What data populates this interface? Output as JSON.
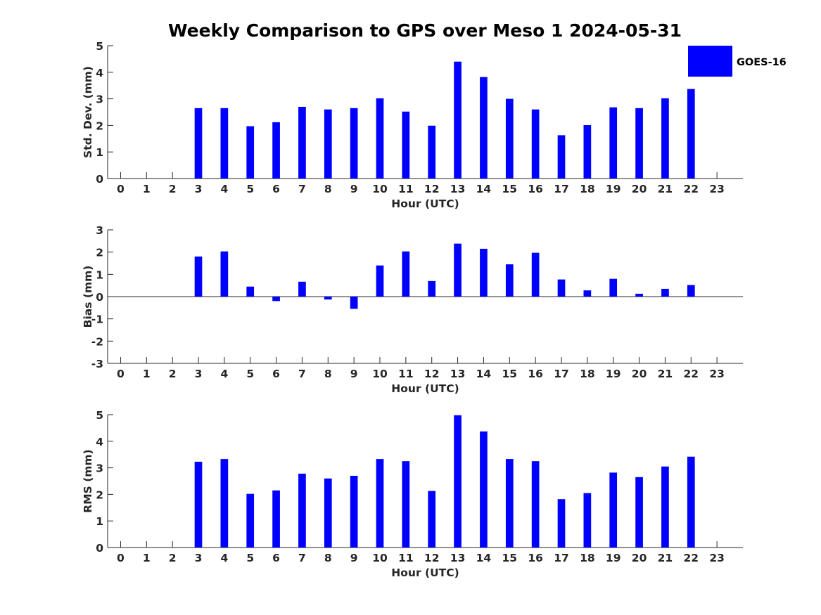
{
  "title": "Weekly Comparison to GPS over Meso 1 2024-05-31",
  "colors": {
    "bar": "#0000ff",
    "axis": "#262626",
    "background": "#ffffff"
  },
  "legend": {
    "label": "GOES-16",
    "placement": "top-right"
  },
  "chart_data": [
    {
      "type": "bar",
      "ylabel": "Std. Dev. (mm)",
      "xlabel": "Hour (UTC)",
      "categories": [
        "0",
        "1",
        "2",
        "3",
        "4",
        "5",
        "6",
        "7",
        "8",
        "9",
        "10",
        "11",
        "12",
        "13",
        "14",
        "15",
        "16",
        "17",
        "18",
        "19",
        "20",
        "21",
        "22",
        "23"
      ],
      "values": [
        null,
        null,
        null,
        2.65,
        2.65,
        1.97,
        2.12,
        2.7,
        2.6,
        2.65,
        3.02,
        2.52,
        1.99,
        4.4,
        3.82,
        3.0,
        2.6,
        1.63,
        2.01,
        2.68,
        2.65,
        3.02,
        3.37,
        null
      ],
      "ylim": [
        0,
        5
      ],
      "yticks": [
        "0",
        "1",
        "2",
        "3",
        "4",
        "5"
      ],
      "grid": false
    },
    {
      "type": "bar",
      "ylabel": "Bias (mm)",
      "xlabel": "Hour (UTC)",
      "categories": [
        "0",
        "1",
        "2",
        "3",
        "4",
        "5",
        "6",
        "7",
        "8",
        "9",
        "10",
        "11",
        "12",
        "13",
        "14",
        "15",
        "16",
        "17",
        "18",
        "19",
        "20",
        "21",
        "22",
        "23"
      ],
      "values": [
        null,
        null,
        null,
        1.8,
        2.03,
        0.45,
        -0.2,
        0.67,
        -0.13,
        -0.55,
        1.4,
        2.03,
        0.7,
        2.38,
        2.15,
        1.45,
        1.97,
        0.77,
        0.28,
        0.8,
        0.13,
        0.35,
        0.52,
        null
      ],
      "ylim": [
        -3,
        3
      ],
      "yticks": [
        "-3",
        "-2",
        "-1",
        "0",
        "1",
        "2",
        "3"
      ],
      "grid": false
    },
    {
      "type": "bar",
      "ylabel": "RMS (mm)",
      "xlabel": "Hour (UTC)",
      "categories": [
        "0",
        "1",
        "2",
        "3",
        "4",
        "5",
        "6",
        "7",
        "8",
        "9",
        "10",
        "11",
        "12",
        "13",
        "14",
        "15",
        "16",
        "17",
        "18",
        "19",
        "20",
        "21",
        "22",
        "23"
      ],
      "values": [
        null,
        null,
        null,
        3.23,
        3.33,
        2.02,
        2.15,
        2.78,
        2.6,
        2.7,
        3.33,
        3.25,
        2.13,
        4.98,
        4.37,
        3.33,
        3.25,
        1.82,
        2.05,
        2.82,
        2.65,
        3.05,
        3.42,
        null
      ],
      "ylim": [
        0,
        5
      ],
      "yticks": [
        "0",
        "1",
        "2",
        "3",
        "4",
        "5"
      ],
      "grid": false
    }
  ]
}
